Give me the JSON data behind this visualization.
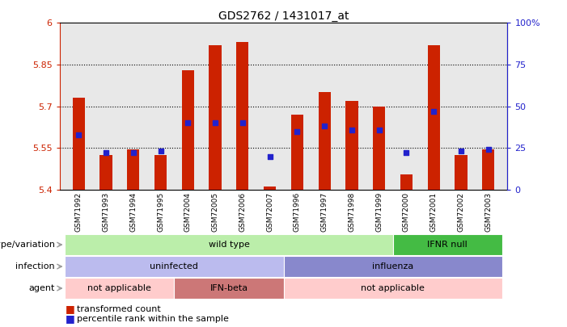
{
  "title": "GDS2762 / 1431017_at",
  "samples": [
    "GSM71992",
    "GSM71993",
    "GSM71994",
    "GSM71995",
    "GSM72004",
    "GSM72005",
    "GSM72006",
    "GSM72007",
    "GSM71996",
    "GSM71997",
    "GSM71998",
    "GSM71999",
    "GSM72000",
    "GSM72001",
    "GSM72002",
    "GSM72003"
  ],
  "bar_tops": [
    5.73,
    5.525,
    5.545,
    5.525,
    5.83,
    5.92,
    5.93,
    5.41,
    5.67,
    5.75,
    5.72,
    5.7,
    5.455,
    5.92,
    5.525,
    5.545
  ],
  "bar_base": 5.4,
  "percentile_values": [
    33,
    22,
    22,
    23,
    40,
    40,
    40,
    20,
    35,
    38,
    36,
    36,
    22,
    47,
    23,
    24
  ],
  "ylim_left": [
    5.4,
    6.0
  ],
  "ylim_right": [
    0,
    100
  ],
  "yticks_left": [
    5.4,
    5.55,
    5.7,
    5.85,
    6.0
  ],
  "yticks_left_labels": [
    "5.4",
    "5.55",
    "5.7",
    "5.85",
    "6"
  ],
  "yticks_right": [
    0,
    25,
    50,
    75,
    100
  ],
  "yticks_right_labels": [
    "0",
    "25",
    "50",
    "75",
    "100%"
  ],
  "hlines": [
    5.55,
    5.7,
    5.85
  ],
  "bar_color": "#cc2200",
  "percentile_color": "#2222cc",
  "bg_color": "#e8e8e8",
  "genotype_row": {
    "label": "genotype/variation",
    "segments": [
      {
        "text": "wild type",
        "start": 0,
        "end": 12,
        "color": "#bbeeaa"
      },
      {
        "text": "IFNR null",
        "start": 12,
        "end": 16,
        "color": "#44bb44"
      }
    ]
  },
  "infection_row": {
    "label": "infection",
    "segments": [
      {
        "text": "uninfected",
        "start": 0,
        "end": 8,
        "color": "#bbbbee"
      },
      {
        "text": "influenza",
        "start": 8,
        "end": 16,
        "color": "#8888cc"
      }
    ]
  },
  "agent_row": {
    "label": "agent",
    "segments": [
      {
        "text": "not applicable",
        "start": 0,
        "end": 4,
        "color": "#ffcccc"
      },
      {
        "text": "IFN-beta",
        "start": 4,
        "end": 8,
        "color": "#cc7777"
      },
      {
        "text": "not applicable",
        "start": 8,
        "end": 16,
        "color": "#ffcccc"
      }
    ]
  },
  "legend_items": [
    {
      "color": "#cc2200",
      "label": "transformed count"
    },
    {
      "color": "#2222cc",
      "label": "percentile rank within the sample"
    }
  ]
}
